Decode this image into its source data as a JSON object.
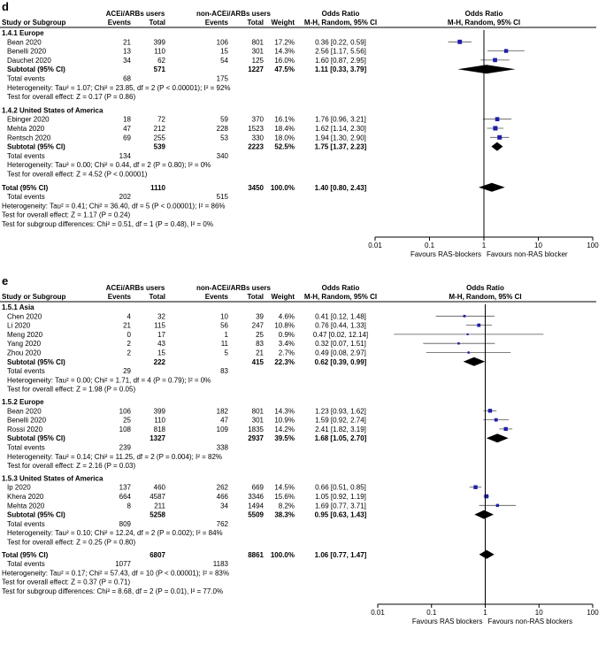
{
  "chart_data": [
    {
      "type": "forest",
      "panel": "d",
      "headers": {
        "study": "Study or Subgroup",
        "group1": "ACEi/ARBs users",
        "group2": "non-ACEi/ARBs users",
        "events": "Events",
        "total": "Total",
        "weight": "Weight",
        "or_title": "Odds Ratio",
        "or_method": "M-H, Random, 95% CI"
      },
      "subgroups": [
        {
          "name": "1.4.1 Europe",
          "studies": [
            {
              "name": "Bean 2020",
              "e1": "21",
              "t1": "399",
              "e2": "106",
              "t2": "801",
              "weight": "17.2%",
              "or_text": "0.36 [0.22, 0.59]",
              "or": 0.36,
              "lo": 0.22,
              "hi": 0.59
            },
            {
              "name": "Benelli 2020",
              "e1": "13",
              "t1": "110",
              "e2": "15",
              "t2": "301",
              "weight": "14.3%",
              "or_text": "2.56 [1.17, 5.56]",
              "or": 2.56,
              "lo": 1.17,
              "hi": 5.56
            },
            {
              "name": "Dauchet 2020",
              "e1": "34",
              "t1": "62",
              "e2": "54",
              "t2": "125",
              "weight": "16.0%",
              "or_text": "1.60 [0.87, 2.95]",
              "or": 1.6,
              "lo": 0.87,
              "hi": 2.95
            }
          ],
          "subtotal": {
            "label": "Subtotal (95% CI)",
            "t1": "571",
            "t2": "1227",
            "weight": "47.5%",
            "or_text": "1.11 [0.33, 3.79]",
            "or": 1.11,
            "lo": 0.33,
            "hi": 3.79
          },
          "total_events": {
            "label": "Total events",
            "e1": "68",
            "e2": "175"
          },
          "heterogeneity": "Heterogeneity: Tau² = 1.07; Chi² = 23.85, df = 2 (P < 0.00001); I² = 92%",
          "overall": "Test for overall effect: Z = 0.17 (P = 0.86)"
        },
        {
          "name": "1.4.2 United States of America",
          "studies": [
            {
              "name": "Ebinger 2020",
              "e1": "18",
              "t1": "72",
              "e2": "59",
              "t2": "370",
              "weight": "16.1%",
              "or_text": "1.76 [0.96, 3.21]",
              "or": 1.76,
              "lo": 0.96,
              "hi": 3.21
            },
            {
              "name": "Mehta 2020",
              "e1": "47",
              "t1": "212",
              "e2": "228",
              "t2": "1523",
              "weight": "18.4%",
              "or_text": "1.62 [1.14, 2.30]",
              "or": 1.62,
              "lo": 1.14,
              "hi": 2.3
            },
            {
              "name": "Rentsch 2020",
              "e1": "69",
              "t1": "255",
              "e2": "53",
              "t2": "330",
              "weight": "18.0%",
              "or_text": "1.94 [1.30, 2.90]",
              "or": 1.94,
              "lo": 1.3,
              "hi": 2.9
            }
          ],
          "subtotal": {
            "label": "Subtotal (95% CI)",
            "t1": "539",
            "t2": "2223",
            "weight": "52.5%",
            "or_text": "1.75 [1.37, 2.23]",
            "or": 1.75,
            "lo": 1.37,
            "hi": 2.23
          },
          "total_events": {
            "label": "Total events",
            "e1": "134",
            "e2": "340"
          },
          "heterogeneity": "Heterogeneity: Tau² = 0.00; Chi² = 0.44, df = 2 (P = 0.80); I² = 0%",
          "overall": "Test for overall effect: Z = 4.52 (P < 0.00001)"
        }
      ],
      "total": {
        "label": "Total (95% CI)",
        "t1": "1110",
        "t2": "3450",
        "weight": "100.0%",
        "or_text": "1.40 [0.80, 2.43]",
        "or": 1.4,
        "lo": 0.8,
        "hi": 2.43
      },
      "total_events": {
        "label": "Total events",
        "e1": "202",
        "e2": "515"
      },
      "footer": [
        "Heterogeneity: Tau² = 0.41; Chi² = 36.40, df = 5 (P < 0.00001); I² = 86%",
        "Test for overall effect: Z = 1.17 (P = 0.24)",
        "Test for subgroup differences: Chi² = 0.51, df = 1 (P = 0.48), I² = 0%"
      ],
      "axis": {
        "scale": "log",
        "xlim": [
          0.01,
          100
        ],
        "ticks": [
          "0.01",
          "0.1",
          "1",
          "10",
          "100"
        ],
        "favours_left": "Favours RAS-blockers",
        "favours_right": "Favours non-RAS blocker"
      },
      "colors": {
        "study": "#1f1fa8",
        "diamond": "#000000"
      }
    },
    {
      "type": "forest",
      "panel": "e",
      "headers": {
        "study": "Study or Subgroup",
        "group1": "ACEi/ARBs users",
        "group2": "non-ACEi/ARBs users",
        "events": "Events",
        "total": "Total",
        "weight": "Weight",
        "or_title": "Odds Ratio",
        "or_method": "M-H, Random, 95% CI"
      },
      "subgroups": [
        {
          "name": "1.5.1 Asia",
          "studies": [
            {
              "name": "Chen 2020",
              "e1": "4",
              "t1": "32",
              "e2": "10",
              "t2": "39",
              "weight": "4.6%",
              "or_text": "0.41 [0.12, 1.48]",
              "or": 0.41,
              "lo": 0.12,
              "hi": 1.48
            },
            {
              "name": "Li 2020",
              "e1": "21",
              "t1": "115",
              "e2": "56",
              "t2": "247",
              "weight": "10.8%",
              "or_text": "0.76 [0.44, 1.33]",
              "or": 0.76,
              "lo": 0.44,
              "hi": 1.33
            },
            {
              "name": "Meng 2020",
              "e1": "0",
              "t1": "17",
              "e2": "1",
              "t2": "25",
              "weight": "0.9%",
              "or_text": "0.47 [0.02, 12.14]",
              "or": 0.47,
              "lo": 0.02,
              "hi": 12.14
            },
            {
              "name": "Yang 2020",
              "e1": "2",
              "t1": "43",
              "e2": "11",
              "t2": "83",
              "weight": "3.4%",
              "or_text": "0.32 [0.07, 1.51]",
              "or": 0.32,
              "lo": 0.07,
              "hi": 1.51
            },
            {
              "name": "Zhou 2020",
              "e1": "2",
              "t1": "15",
              "e2": "5",
              "t2": "21",
              "weight": "2.7%",
              "or_text": "0.49 [0.08, 2.97]",
              "or": 0.49,
              "lo": 0.08,
              "hi": 2.97
            }
          ],
          "subtotal": {
            "label": "Subtotal (95% CI)",
            "t1": "222",
            "t2": "415",
            "weight": "22.3%",
            "or_text": "0.62 [0.39, 0.99]",
            "or": 0.62,
            "lo": 0.39,
            "hi": 0.99
          },
          "total_events": {
            "label": "Total events",
            "e1": "29",
            "e2": "83"
          },
          "heterogeneity": "Heterogeneity: Tau² = 0.00; Chi² = 1.71, df = 4 (P = 0.79); I² = 0%",
          "overall": "Test for overall effect: Z = 1.98 (P = 0.05)"
        },
        {
          "name": "1.5.2 Europe",
          "studies": [
            {
              "name": "Bean 2020",
              "e1": "106",
              "t1": "399",
              "e2": "182",
              "t2": "801",
              "weight": "14.3%",
              "or_text": "1.23 [0.93, 1.62]",
              "or": 1.23,
              "lo": 0.93,
              "hi": 1.62
            },
            {
              "name": "Benelli 2020",
              "e1": "25",
              "t1": "110",
              "e2": "47",
              "t2": "301",
              "weight": "10.9%",
              "or_text": "1.59 [0.92, 2.74]",
              "or": 1.59,
              "lo": 0.92,
              "hi": 2.74
            },
            {
              "name": "Rossi 2020",
              "e1": "108",
              "t1": "818",
              "e2": "109",
              "t2": "1835",
              "weight": "14.2%",
              "or_text": "2.41 [1.82, 3.19]",
              "or": 2.41,
              "lo": 1.82,
              "hi": 3.19
            }
          ],
          "subtotal": {
            "label": "Subtotal (95% CI)",
            "t1": "1327",
            "t2": "2937",
            "weight": "39.5%",
            "or_text": "1.68 [1.05, 2.70]",
            "or": 1.68,
            "lo": 1.05,
            "hi": 2.7
          },
          "total_events": {
            "label": "Total events",
            "e1": "239",
            "e2": "338"
          },
          "heterogeneity": "Heterogeneity: Tau² = 0.14; Chi² = 11.25, df = 2 (P = 0.004); I² = 82%",
          "overall": "Test for overall effect: Z = 2.16 (P = 0.03)"
        },
        {
          "name": "1.5.3 United States of America",
          "studies": [
            {
              "name": "Ip 2020",
              "e1": "137",
              "t1": "460",
              "e2": "262",
              "t2": "669",
              "weight": "14.5%",
              "or_text": "0.66 [0.51, 0.85]",
              "or": 0.66,
              "lo": 0.51,
              "hi": 0.85
            },
            {
              "name": "Khera 2020",
              "e1": "664",
              "t1": "4587",
              "e2": "466",
              "t2": "3346",
              "weight": "15.6%",
              "or_text": "1.05 [0.92, 1.19]",
              "or": 1.05,
              "lo": 0.92,
              "hi": 1.19
            },
            {
              "name": "Mehta 2020",
              "e1": "8",
              "t1": "211",
              "e2": "34",
              "t2": "1494",
              "weight": "8.2%",
              "or_text": "1.69 [0.77, 3.71]",
              "or": 1.69,
              "lo": 0.77,
              "hi": 3.71
            }
          ],
          "subtotal": {
            "label": "Subtotal (95% CI)",
            "t1": "5258",
            "t2": "5509",
            "weight": "38.3%",
            "or_text": "0.95 [0.63, 1.43]",
            "or": 0.95,
            "lo": 0.63,
            "hi": 1.43
          },
          "total_events": {
            "label": "Total events",
            "e1": "809",
            "e2": "762"
          },
          "heterogeneity": "Heterogeneity: Tau² = 0.10; Chi² = 12.24, df = 2 (P = 0.002); I² = 84%",
          "overall": "Test for overall effect: Z = 0.25 (P = 0.80)"
        }
      ],
      "total": {
        "label": "Total (95% CI)",
        "t1": "6807",
        "t2": "8861",
        "weight": "100.0%",
        "or_text": "1.06 [0.77, 1.47]",
        "or": 1.06,
        "lo": 0.77,
        "hi": 1.47
      },
      "total_events": {
        "label": "Total events",
        "e1": "1077",
        "e2": "1183"
      },
      "footer": [
        "Heterogeneity: Tau² = 0.17; Chi² = 57.43, df = 10 (P < 0.00001); I² = 83%",
        "Test for overall effect: Z = 0.37 (P = 0.71)",
        "Test for subgroup differences: Chi² = 8.68, df = 2 (P = 0.01), I² = 77.0%"
      ],
      "axis": {
        "scale": "log",
        "xlim": [
          0.01,
          100
        ],
        "ticks": [
          "0.01",
          "0.1",
          "1",
          "10",
          "100"
        ],
        "favours_left": "Favours RAS blockers",
        "favours_right": "Favours non-RAS blockers"
      },
      "colors": {
        "study": "#1f1fa8",
        "diamond": "#000000"
      }
    }
  ]
}
